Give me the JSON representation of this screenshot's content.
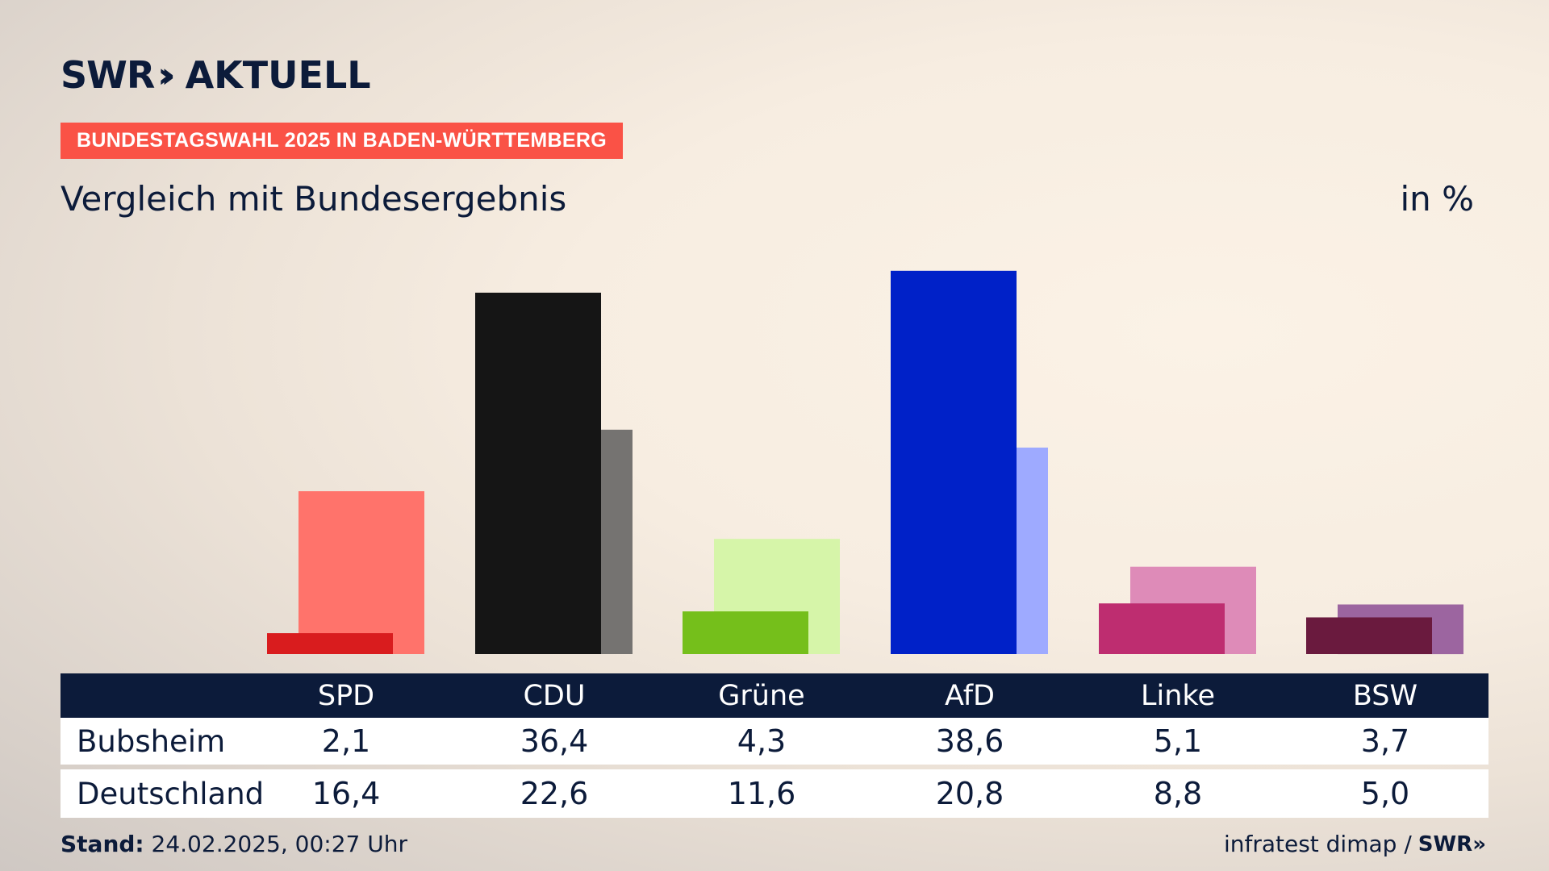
{
  "brand": {
    "logo_text": "SWR",
    "logo_chevrons": "»",
    "product": "AKTUELL"
  },
  "banner": "BUNDESTAGSWAHL 2025 IN BADEN-WÜRTTEMBERG",
  "subtitle": "Vergleich mit Bundesergebnis",
  "unit": "in %",
  "footer": {
    "stand_label": "Stand:",
    "stand_value": "24.02.2025, 00:27 Uhr",
    "source": "infratest dimap /",
    "source_brand": "SWR»"
  },
  "table": {
    "rows": [
      {
        "label": "Bubsheim",
        "values": [
          "2,1",
          "36,4",
          "4,3",
          "38,6",
          "5,1",
          "3,7"
        ]
      },
      {
        "label": "Deutschland",
        "values": [
          "16,4",
          "22,6",
          "11,6",
          "20,8",
          "8,8",
          "5,0"
        ]
      }
    ]
  },
  "chart_data": {
    "type": "bar",
    "categories": [
      "SPD",
      "CDU",
      "Grüne",
      "AfD",
      "Linke",
      "BSW"
    ],
    "series": [
      {
        "name": "Bubsheim",
        "values": [
          2.1,
          36.4,
          4.3,
          38.6,
          5.1,
          3.7
        ],
        "colors": [
          "#d91c1e",
          "#151515",
          "#75bf1b",
          "#0021c8",
          "#be2d70",
          "#6a1a3e"
        ]
      },
      {
        "name": "Deutschland",
        "values": [
          16.4,
          22.6,
          11.6,
          20.8,
          8.8,
          5.0
        ],
        "colors": [
          "#ff736b",
          "#757371",
          "#d6f5a9",
          "#9eaaff",
          "#de8bb8",
          "#9c65a0"
        ]
      }
    ],
    "title": "Vergleich mit Bundesergebnis",
    "ylabel": "in %",
    "ylim": [
      0,
      40
    ],
    "grid": false,
    "legend": "table-below"
  }
}
